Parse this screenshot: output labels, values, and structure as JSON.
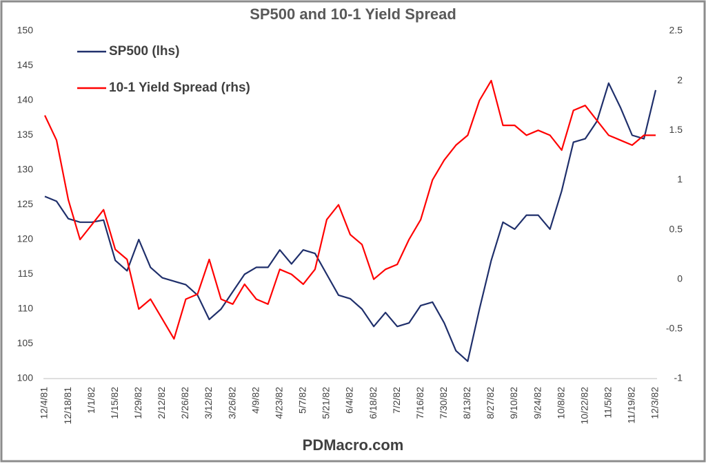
{
  "chart_data": {
    "type": "line",
    "title": "SP500 and 10-1 Yield Spread",
    "source": "PDMacro.com",
    "categories": [
      "12/4/81",
      null,
      "12/18/81",
      null,
      "1/1/82",
      null,
      "1/15/82",
      null,
      "1/29/82",
      null,
      "2/12/82",
      null,
      "2/26/82",
      null,
      "3/12/82",
      null,
      "3/26/82",
      null,
      "4/9/82",
      null,
      "4/23/82",
      null,
      "5/7/82",
      null,
      "5/21/82",
      null,
      "6/4/82",
      null,
      "6/18/82",
      null,
      "7/2/82",
      null,
      "7/16/82",
      null,
      "7/30/82",
      null,
      "8/13/82",
      null,
      "8/27/82",
      null,
      "9/10/82",
      null,
      "9/24/82",
      null,
      "10/8/82",
      null,
      "10/22/82",
      null,
      "11/5/82",
      null,
      "11/19/82",
      null,
      "12/3/82"
    ],
    "series": [
      {
        "name": "SP500 (lhs)",
        "color": "#1f2f6b",
        "axis": "y",
        "values": [
          126.2,
          125.5,
          123,
          122.5,
          122.5,
          122.8,
          117,
          115.5,
          120,
          116,
          114.5,
          114,
          113.5,
          112,
          108.5,
          110,
          112.5,
          115,
          116,
          116,
          118.5,
          116.5,
          118.5,
          118,
          115,
          112,
          111.5,
          110,
          107.5,
          109.5,
          107.5,
          108,
          110.5,
          111,
          108,
          104,
          102.5,
          110,
          117,
          122.5,
          121.5,
          123.5,
          123.5,
          121.5,
          127,
          134,
          134.5,
          137,
          142.5,
          139,
          135,
          134.5,
          141.5
        ]
      },
      {
        "name": "10-1 Yield Spread (rhs)",
        "color": "#ff0000",
        "axis": "y2",
        "values": [
          1.65,
          1.4,
          0.8,
          0.4,
          0.55,
          0.7,
          0.3,
          0.2,
          -0.3,
          -0.2,
          -0.4,
          -0.6,
          -0.2,
          -0.15,
          0.2,
          -0.2,
          -0.25,
          -0.05,
          -0.2,
          -0.25,
          0.1,
          0.05,
          -0.05,
          0.1,
          0.6,
          0.75,
          0.45,
          0.35,
          0.0,
          0.1,
          0.15,
          0.4,
          0.6,
          1.0,
          1.2,
          1.35,
          1.45,
          1.8,
          2.0,
          1.55,
          1.55,
          1.45,
          1.5,
          1.45,
          1.3,
          1.7,
          1.75,
          1.6,
          1.45,
          1.4,
          1.35,
          1.45,
          1.45
        ]
      }
    ],
    "ylim": [
      100,
      150
    ],
    "yticks": [
      100,
      105,
      110,
      115,
      120,
      125,
      130,
      135,
      140,
      145,
      150
    ],
    "y2lim": [
      -1,
      2.5
    ],
    "y2ticks": [
      -1,
      -0.5,
      0,
      0.5,
      1,
      1.5,
      2,
      2.5
    ],
    "legend": "top-left",
    "grid": false
  }
}
